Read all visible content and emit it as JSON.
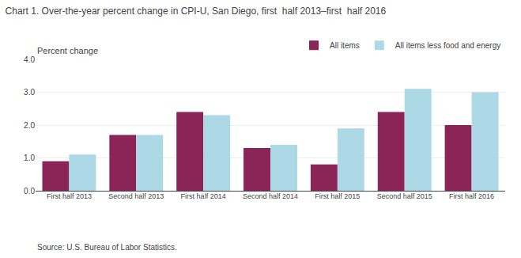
{
  "chart_data": {
    "type": "bar",
    "title": "Chart 1. Over-the-year percent change in CPI-U, San Diego, first  half 2013–first  half 2016",
    "ylabel": "Percent change",
    "annotations": [
      "Source: U.S. Bureau of Labor Statistics."
    ],
    "categories": [
      "First half 2013",
      "Second half 2013",
      "First half 2014",
      "Second half 2014",
      "First half 2015",
      "Second half 2015",
      "First half 2016"
    ],
    "series": [
      {
        "name": "All items",
        "color": "#8B2558",
        "values": [
          0.9,
          1.7,
          2.4,
          1.3,
          0.8,
          2.4,
          2.0
        ]
      },
      {
        "name": "All items less food and energy",
        "color": "#ADD8E6",
        "values": [
          1.1,
          1.7,
          2.3,
          1.4,
          1.9,
          3.1,
          3.0
        ]
      }
    ],
    "ylim": [
      0,
      4.0
    ],
    "yticks": [
      {
        "value": 0.0,
        "label": "0.0"
      },
      {
        "value": 1.0,
        "label": "1.0"
      },
      {
        "value": 2.0,
        "label": "2.0"
      },
      {
        "value": 3.0,
        "label": "3.0"
      },
      {
        "value": 4.0,
        "label": "4.0"
      }
    ],
    "grid": true,
    "legend": "upper right"
  }
}
